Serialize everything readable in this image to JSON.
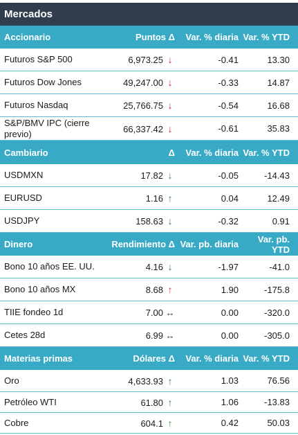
{
  "title": "Mercados",
  "colors": {
    "title_bg": "#2f3d4e",
    "header_bg": "#39aac6",
    "divider": "#5fbad0",
    "down": "#d42a2a",
    "up": "#2e8b3c"
  },
  "sections": [
    {
      "name": "Accionario",
      "col2": "Puntos Δ",
      "col3": "Var. % diaria",
      "col4": "Var. % YTD",
      "rows": [
        {
          "name": "Futuros S&P 500",
          "value": "6,973.25",
          "arrow": "↓",
          "arrow_icon": "arrow-down-red-icon",
          "daily": "-0.41",
          "ytd": "13.30"
        },
        {
          "name": "Futuros Dow Jones",
          "value": "49,247.00",
          "arrow": "↓",
          "arrow_icon": "arrow-down-red-icon",
          "daily": "-0.33",
          "ytd": "14.87"
        },
        {
          "name": "Futuros Nasdaq",
          "value": "25,766.75",
          "arrow": "↓",
          "arrow_icon": "arrow-down-red-icon",
          "daily": "-0.54",
          "ytd": "16.68"
        },
        {
          "name": "S&P/BMV IPC (cierre previo)",
          "value": "66,337.42",
          "arrow": "↓",
          "arrow_icon": "arrow-down-red-icon",
          "daily": "-0.61",
          "ytd": "35.83"
        }
      ]
    },
    {
      "name": "Cambiario",
      "col2": "Δ",
      "col3": "Var. % diaria",
      "col4": "Var. % YTD",
      "rows": [
        {
          "name": "USDMXN",
          "value": "17.82",
          "arrow": "↓",
          "arrow_icon": "arrow-down-green-icon",
          "daily": "-0.05",
          "ytd": "-14.43"
        },
        {
          "name": "EURUSD",
          "value": "1.16",
          "arrow": "↑",
          "arrow_icon": "arrow-up-green-icon",
          "daily": "0.04",
          "ytd": "12.49"
        },
        {
          "name": "USDJPY",
          "value": "158.63",
          "arrow": "↓",
          "arrow_icon": "arrow-down-green-icon",
          "daily": "-0.32",
          "ytd": "0.91"
        }
      ]
    },
    {
      "name": "Dinero",
      "col2": "Rendimiento Δ",
      "col3": "Var. pb. diaria",
      "col4": "Var. pb. YTD",
      "rows": [
        {
          "name": "Bono 10 años EE. UU.",
          "value": "4.16",
          "arrow": "↓",
          "arrow_icon": "arrow-down-green-icon",
          "daily": "-1.97",
          "ytd": "-41.0"
        },
        {
          "name": "Bono 10 años MX",
          "value": "8.68",
          "arrow": "↑",
          "arrow_icon": "arrow-up-red-icon",
          "daily": "1.90",
          "ytd": "-175.8"
        },
        {
          "name": "TIIE fondeo 1d",
          "value": "7.00",
          "arrow": "↔",
          "arrow_icon": "arrow-flat-icon",
          "daily": "0.00",
          "ytd": "-320.0"
        },
        {
          "name": "Cetes 28d",
          "value": "6.99",
          "arrow": "↔",
          "arrow_icon": "arrow-flat-icon",
          "daily": "0.00",
          "ytd": "-305.0"
        }
      ]
    },
    {
      "name": "Materias primas",
      "col2": "Dólares Δ",
      "col3": "Var. % diaria",
      "col4": "Var. % YTD",
      "rows": [
        {
          "name": "Oro",
          "value": "4,633.93",
          "arrow": "↑",
          "arrow_icon": "arrow-up-green-icon",
          "daily": "1.03",
          "ytd": "76.56"
        },
        {
          "name": "Petróleo WTI",
          "value": "61.80",
          "arrow": "↑",
          "arrow_icon": "arrow-up-green-icon",
          "daily": "1.06",
          "ytd": "-13.83"
        },
        {
          "name": "Cobre",
          "value": "604.1",
          "arrow": "↑",
          "arrow_icon": "arrow-up-green-icon",
          "daily": "0.42",
          "ytd": "50.03"
        }
      ]
    }
  ]
}
